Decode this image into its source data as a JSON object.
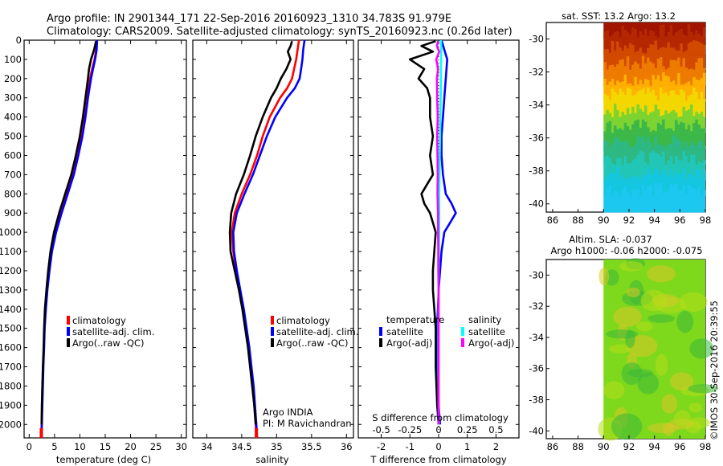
{
  "title": {
    "line1": "Argo profile: IN 2901344_171 22-Sep-2016 20160923_1310 34.783S 91.979E",
    "line2": "Climatology: CARS2009. Satellite-adjusted climatology: synTS_20160923.nc (0.26d later)"
  },
  "colors": {
    "climatology": "#ff0000",
    "satellite": "#0000ff",
    "argo": "#000000",
    "sal_satellite": "#00ffff",
    "sal_argo": "#ff00ff"
  },
  "chart_data": [
    {
      "type": "line",
      "id": "temperature",
      "xlabel": "temperature (deg C)",
      "ylabel": "",
      "xlim": [
        -1,
        31
      ],
      "ylim": [
        2070,
        0
      ],
      "xticks": [
        0,
        5,
        10,
        15,
        20,
        25,
        30
      ],
      "xtick_labels": [
        "0",
        "5",
        "10",
        "15",
        "20",
        "25",
        "30"
      ],
      "yticks": [
        0,
        100,
        200,
        300,
        400,
        500,
        600,
        700,
        800,
        900,
        1000,
        1100,
        1200,
        1300,
        1400,
        1500,
        1600,
        1700,
        1800,
        1900,
        2000
      ],
      "ytick_labels": [
        "0",
        "100",
        "200",
        "300",
        "400",
        "500",
        "600",
        "700",
        "800",
        "900",
        "1000",
        "1100",
        "1200",
        "1300",
        "1400",
        "1500",
        "1600",
        "1700",
        "1800",
        "1900",
        "2000"
      ],
      "legend": {
        "position": "lower-center",
        "entries": [
          "climatology",
          "satellite-adj. clim.",
          "Argo(..raw -QC)"
        ]
      },
      "series": [
        {
          "name": "climatology",
          "color": "#ff0000",
          "depth": [
            0,
            50,
            100,
            150,
            200,
            300,
            400,
            500,
            600,
            700,
            800,
            900,
            1000,
            1100,
            1200,
            1300,
            1400,
            1500,
            1600,
            1700,
            1800,
            1900,
            2000,
            2070
          ],
          "values": [
            13.3,
            13.2,
            12.9,
            12.4,
            12.0,
            11.4,
            10.9,
            10.3,
            9.5,
            8.6,
            7.4,
            6.2,
            5.2,
            4.4,
            3.9,
            3.5,
            3.2,
            3.0,
            2.9,
            2.75,
            2.65,
            2.55,
            2.45,
            2.4
          ]
        },
        {
          "name": "satellite-adj. clim.",
          "color": "#0000ff",
          "depth": [
            0,
            50,
            100,
            150,
            200,
            300,
            400,
            500,
            600,
            700,
            800,
            900,
            1000,
            1100,
            1200,
            1300,
            1400,
            1500,
            1600,
            1700,
            1800,
            1900,
            2000,
            2070
          ],
          "values": [
            13.4,
            13.3,
            13.0,
            12.6,
            12.2,
            11.6,
            11.1,
            10.5,
            9.7,
            8.8,
            7.6,
            6.4,
            5.3,
            4.5,
            4.0,
            3.6,
            3.3,
            3.05,
            2.95,
            2.8,
            2.7,
            2.6,
            2.5,
            2.45
          ]
        },
        {
          "name": "Argo(..raw -QC)",
          "color": "#000000",
          "depth": [
            5,
            50,
            100,
            150,
            200,
            300,
            400,
            500,
            600,
            700,
            800,
            900,
            1000,
            1100,
            1200,
            1300,
            1400,
            1500,
            1600,
            1700,
            1800,
            1900,
            2000
          ],
          "values": [
            13.2,
            12.8,
            12.2,
            11.8,
            11.6,
            11.1,
            10.6,
            10.0,
            9.2,
            8.3,
            7.1,
            5.9,
            4.9,
            4.2,
            3.75,
            3.4,
            3.1,
            2.95,
            2.85,
            2.7,
            2.6,
            2.5,
            2.45
          ]
        }
      ]
    },
    {
      "type": "line",
      "id": "salinity",
      "xlabel": "salinity",
      "xlim": [
        33.8,
        36.1
      ],
      "ylim": [
        2070,
        0
      ],
      "xticks": [
        34,
        34.5,
        35,
        35.5,
        36
      ],
      "xtick_labels": [
        "34",
        "34.5",
        "35",
        "35.5",
        "36"
      ],
      "legend": {
        "position": "lower-right",
        "entries": [
          "climatology",
          "satellite-adj. clim.",
          "Argo(..raw -QC)"
        ]
      },
      "annotation": [
        "Argo INDIA",
        "PI: M Ravichandran"
      ],
      "series": [
        {
          "name": "climatology",
          "color": "#ff0000",
          "depth": [
            0,
            50,
            100,
            150,
            200,
            250,
            300,
            400,
            500,
            600,
            700,
            800,
            900,
            1000,
            1100,
            1200,
            1300,
            1400,
            1500,
            1600,
            1700,
            1800,
            1900,
            2000,
            2070
          ],
          "values": [
            35.32,
            35.3,
            35.28,
            35.25,
            35.22,
            35.15,
            35.05,
            34.9,
            34.8,
            34.72,
            34.62,
            34.5,
            34.4,
            34.36,
            34.38,
            34.42,
            34.47,
            34.52,
            34.56,
            34.6,
            34.63,
            34.66,
            34.68,
            34.7,
            34.71
          ]
        },
        {
          "name": "satellite-adj. clim.",
          "color": "#0000ff",
          "depth": [
            0,
            50,
            100,
            150,
            200,
            250,
            300,
            400,
            500,
            600,
            700,
            800,
            900,
            1000,
            1100,
            1200,
            1300,
            1400,
            1500,
            1600,
            1700,
            1800,
            1900,
            2000,
            2070
          ],
          "values": [
            35.4,
            35.38,
            35.37,
            35.35,
            35.33,
            35.26,
            35.15,
            34.98,
            34.86,
            34.76,
            34.66,
            34.54,
            34.43,
            34.38,
            34.39,
            34.43,
            34.48,
            34.53,
            34.57,
            34.61,
            34.64,
            34.67,
            34.69,
            34.71,
            34.72
          ]
        },
        {
          "name": "Argo(..raw -QC)",
          "color": "#000000",
          "depth": [
            5,
            30,
            60,
            100,
            150,
            200,
            250,
            300,
            400,
            500,
            600,
            700,
            800,
            900,
            1000,
            1100,
            1200,
            1300,
            1400,
            1500,
            1600,
            1700,
            1800,
            1900,
            2000
          ],
          "values": [
            35.22,
            35.2,
            35.16,
            35.2,
            35.14,
            35.06,
            35.0,
            34.92,
            34.8,
            34.7,
            34.62,
            34.53,
            34.42,
            34.35,
            34.33,
            34.34,
            34.4,
            34.46,
            34.51,
            34.55,
            34.59,
            34.62,
            34.65,
            34.68,
            34.7
          ]
        }
      ]
    },
    {
      "type": "line",
      "id": "difference",
      "xlabel": "T difference from climatology",
      "xlabel2": "S difference from climatology",
      "xlim": [
        -2.8,
        2.8
      ],
      "ylim": [
        2070,
        0
      ],
      "xticks": [
        -2,
        -1,
        0,
        1,
        2
      ],
      "xtick_labels": [
        "-2",
        "-1",
        "0",
        "1",
        "2"
      ],
      "xticks2": [
        -0.5,
        -0.25,
        0,
        0.25,
        0.5
      ],
      "xtick2_labels": [
        "-0.5",
        "-0.25",
        "0",
        "0.25",
        "0.5"
      ],
      "legend_titles": [
        "temperature",
        "salinity"
      ],
      "legend": {
        "position": "lower-center",
        "entries": [
          "satellite",
          "Argo(-adj)",
          "satellite",
          "Argo(-adj)"
        ]
      },
      "series": [
        {
          "name": "temperature satellite",
          "color": "#0000ff",
          "depth": [
            0,
            50,
            100,
            200,
            300,
            400,
            500,
            600,
            700,
            800,
            850,
            900,
            950,
            1000,
            1100,
            1200,
            1300,
            1500,
            1700,
            1900,
            2000
          ],
          "values": [
            0.1,
            0.2,
            0.3,
            0.25,
            0.2,
            0.15,
            0.1,
            0.1,
            0.15,
            0.25,
            0.45,
            0.6,
            0.4,
            0.2,
            0.1,
            0.05,
            0.0,
            -0.05,
            -0.05,
            0.0,
            0.05
          ]
        },
        {
          "name": "temperature Argo(-adj)",
          "color": "#000000",
          "depth": [
            5,
            30,
            60,
            100,
            150,
            200,
            250,
            300,
            400,
            500,
            600,
            700,
            750,
            800,
            850,
            900,
            950,
            1000,
            1100,
            1200,
            1300,
            1500,
            1700,
            1900,
            2000
          ],
          "values": [
            -0.1,
            -0.6,
            -0.2,
            -1.0,
            -0.5,
            -0.7,
            -0.4,
            -0.3,
            -0.3,
            -0.2,
            -0.3,
            -0.2,
            -0.4,
            -0.6,
            -0.5,
            -0.3,
            -0.2,
            -0.1,
            -0.15,
            -0.2,
            -0.2,
            -0.1,
            -0.1,
            -0.05,
            0.0
          ]
        },
        {
          "name": "salinity satellite",
          "color": "#00ffff",
          "depth": [
            0,
            50,
            100,
            150,
            200,
            300,
            400,
            500,
            600,
            700,
            800,
            900,
            1000,
            1100,
            1200,
            1300,
            1500,
            1700,
            1900,
            2000
          ],
          "values": [
            0.08,
            0.09,
            0.09,
            0.08,
            0.08,
            0.07,
            0.06,
            0.05,
            0.04,
            0.03,
            0.02,
            0.02,
            0.02,
            0.01,
            0.0,
            0.0,
            -0.01,
            -0.01,
            0.0,
            0.01
          ]
        },
        {
          "name": "salinity Argo(-adj)",
          "color": "#ff00ff",
          "depth": [
            5,
            30,
            60,
            100,
            150,
            200,
            300,
            400,
            500,
            600,
            700,
            800,
            900,
            1000,
            1100,
            1200,
            1300,
            1500,
            1700,
            1900,
            2000
          ],
          "values": [
            -0.02,
            -0.06,
            0.02,
            -0.08,
            -0.02,
            -0.06,
            -0.05,
            -0.03,
            -0.05,
            -0.04,
            -0.03,
            -0.04,
            -0.02,
            -0.02,
            -0.01,
            -0.01,
            0.0,
            0.0,
            0.0,
            0.0,
            0.0
          ]
        }
      ]
    },
    {
      "type": "heatmap",
      "id": "sst-map",
      "title": "sat. SST: 13.2 Argo: 13.2",
      "xlim": [
        85.5,
        98
      ],
      "ylim": [
        -40.5,
        -29
      ],
      "xticks": [
        86,
        88,
        90,
        92,
        94,
        96,
        98
      ],
      "xtick_labels": [
        "86",
        "88",
        "90",
        "92",
        "94",
        "96",
        "98"
      ],
      "yticks": [
        -30,
        -32,
        -34,
        -36,
        -38,
        -40
      ],
      "ytick_labels": [
        "-30",
        "-32",
        "-34",
        "-36",
        "-38",
        "-40"
      ],
      "data_x_range": [
        90,
        98
      ],
      "rows": [
        "-29",
        "-30",
        "-31",
        "-32",
        "-33",
        "-34",
        "-35",
        "-36",
        "-37",
        "-38",
        "-39",
        "-40"
      ],
      "row_colors": [
        "#a01400",
        "#b42800",
        "#d24a00",
        "#ee7a00",
        "#ffb000",
        "#f2d800",
        "#7dd430",
        "#3cb848",
        "#2db884",
        "#22c6b6",
        "#14c6e0",
        "#1cc8f0"
      ]
    },
    {
      "type": "heatmap",
      "id": "sla-map",
      "title": "Altim. SLA: -0.037",
      "subtitle": "Argo h1000: -0.06 h2000: -0.075",
      "xlim": [
        85.5,
        98
      ],
      "ylim": [
        -40.5,
        -29
      ],
      "xticks": [
        86,
        88,
        90,
        92,
        94,
        96,
        98
      ],
      "xtick_labels": [
        "86",
        "88",
        "90",
        "92",
        "94",
        "96",
        "98"
      ],
      "yticks": [
        -30,
        -32,
        -34,
        -36,
        -38,
        -40
      ],
      "ytick_labels": [
        "-30",
        "-32",
        "-34",
        "-36",
        "-38",
        "-40"
      ],
      "data_x_range": [
        90,
        98
      ],
      "base_color": "#7ed81c",
      "spot_colors": [
        "#3ab83a",
        "#b4de1a",
        "#d8c828"
      ]
    }
  ],
  "credit": "©IMOS 30-Sep-2016 20:39:55"
}
